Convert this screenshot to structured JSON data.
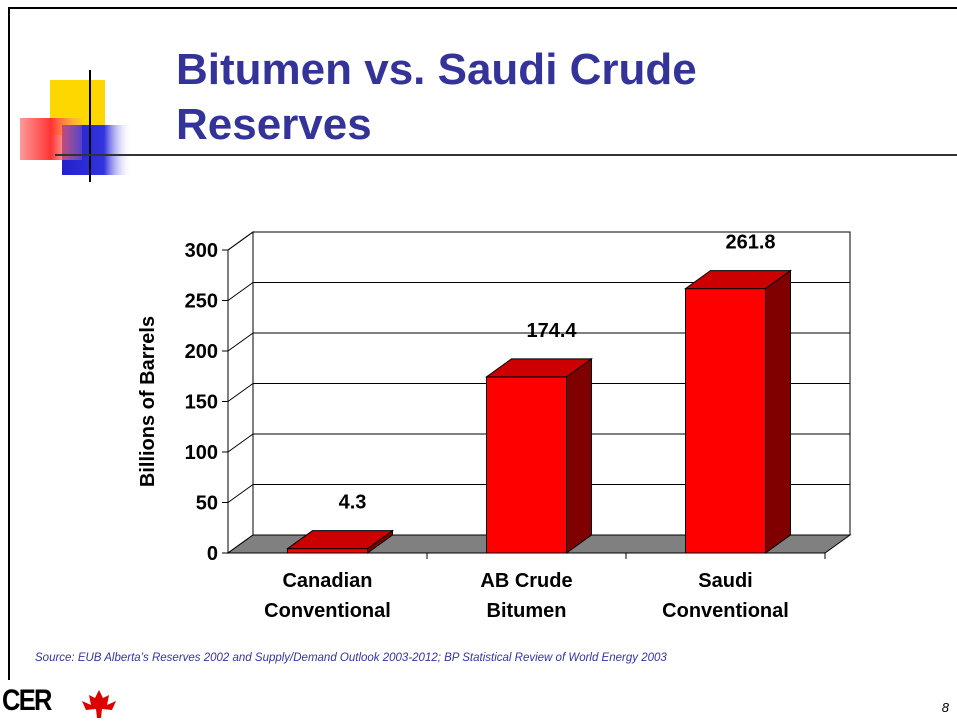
{
  "title": "Bitumen vs. Saudi Crude Reserves",
  "chart_data": {
    "type": "bar3d",
    "categories": [
      "Canadian Conventional",
      "AB Crude Bitumen",
      "Saudi Conventional"
    ],
    "values": [
      4.3,
      174.4,
      261.8
    ],
    "color": "#ff0000",
    "ylabel": "Billions of Barrels",
    "ylim": [
      0,
      300
    ],
    "yticks": [
      0,
      50,
      100,
      150,
      200,
      250,
      300
    ],
    "grid": true
  },
  "source": "Source: EUB Alberta’s Reserves 2002 and Supply/Demand Outlook 2003-2012; BP Statistical Review of World Energy 2003",
  "logo": "CER",
  "page_number": "8"
}
